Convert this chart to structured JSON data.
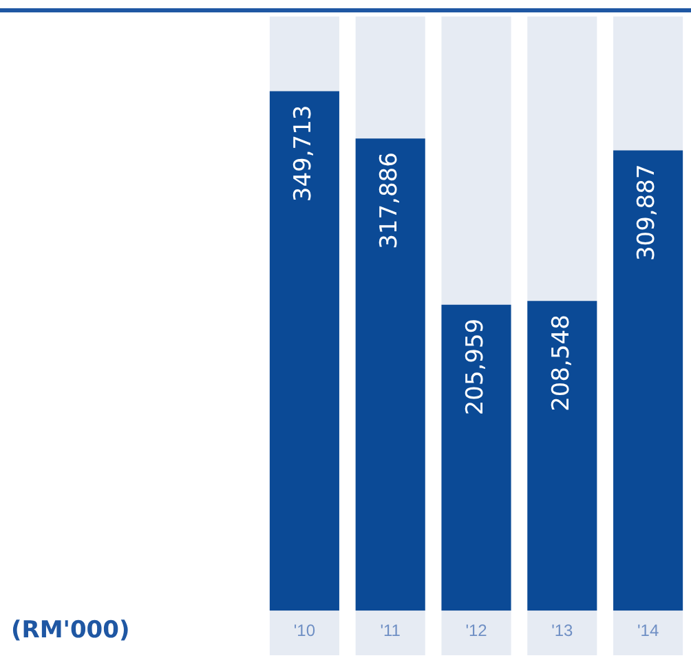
{
  "chart_data": {
    "type": "bar",
    "annotations": [
      "(RM'000)"
    ],
    "categories": [
      "'10",
      "'11",
      "'12",
      "'13",
      "'14"
    ],
    "values": [
      349713,
      317886,
      205959,
      208548,
      309887
    ],
    "value_labels": [
      "349,713",
      "317,886",
      "205,959",
      "208,548",
      "309,887"
    ],
    "color": "#0b4a96",
    "grid": false,
    "legend": false
  }
}
